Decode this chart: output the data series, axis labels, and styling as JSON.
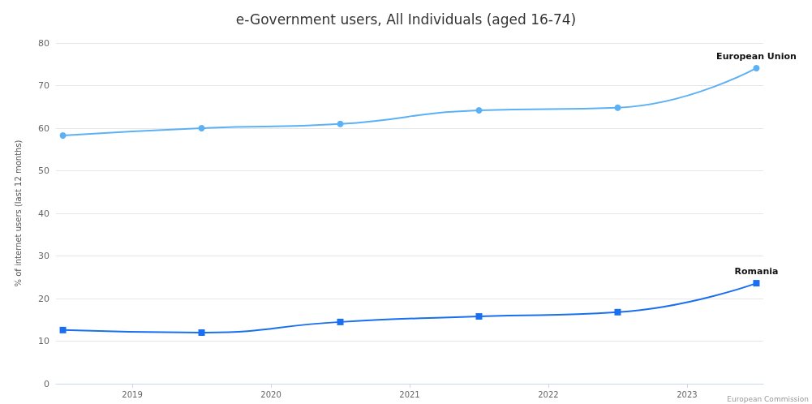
{
  "chart_data": {
    "type": "line",
    "title": "e-Government users, All Individuals (aged 16-74)",
    "ylabel": "% of internet users (last 12 months)",
    "x": [
      2018.5,
      2019.5,
      2020.5,
      2021.5,
      2022.5,
      2023.5
    ],
    "series": [
      {
        "name": "European Union",
        "color": "#5cb1f5",
        "marker": "circle",
        "values": [
          58.3,
          60.0,
          61.0,
          64.2,
          64.8,
          74.1
        ]
      },
      {
        "name": "Romania",
        "color": "#1a6ff0",
        "marker": "square",
        "values": [
          12.6,
          12.0,
          14.5,
          15.8,
          16.8,
          23.6
        ]
      }
    ],
    "xlim": [
      2018.45,
      2023.55
    ],
    "xticks": [
      2019,
      2020,
      2021,
      2022,
      2023
    ],
    "ylim": [
      0,
      80
    ],
    "yticks": [
      0,
      10,
      20,
      30,
      40,
      50,
      60,
      70,
      80
    ],
    "grid": "y",
    "legend": false,
    "annotations": [
      "European Commission"
    ]
  }
}
